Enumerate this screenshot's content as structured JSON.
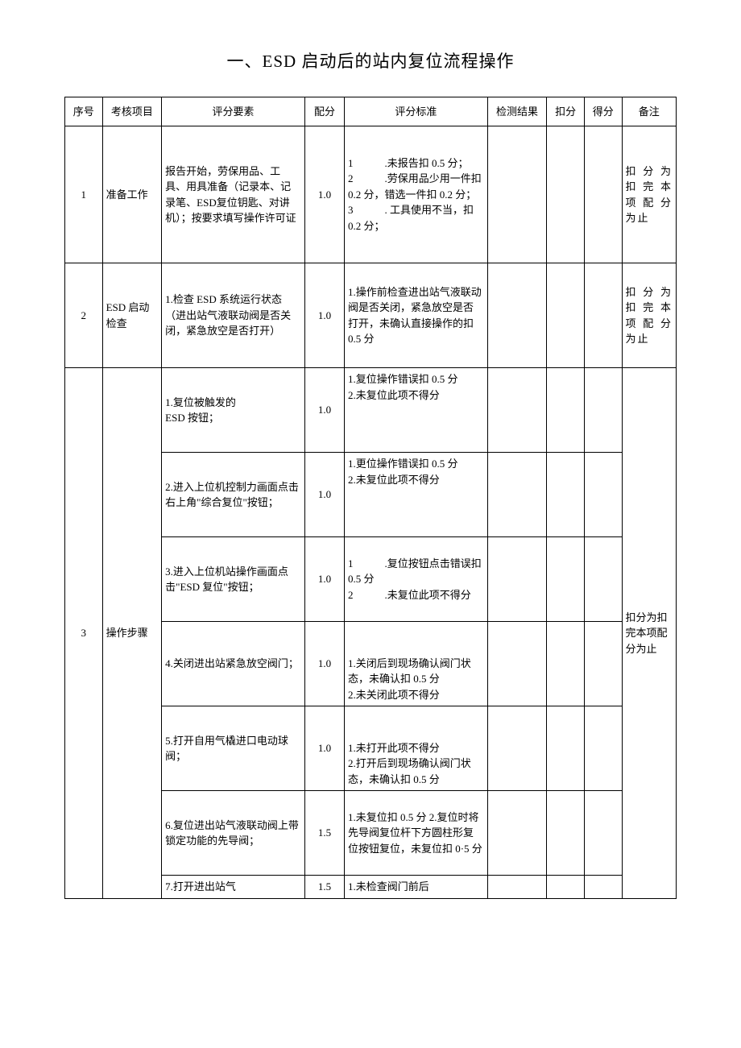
{
  "title": "一、ESD 启动后的站内复位流程操作",
  "headers": {
    "seq": "序号",
    "item": "考核项目",
    "element": "评分要素",
    "score": "配分",
    "standard": "评分标准",
    "result": "检测结果",
    "deduct": "扣分",
    "gain": "得分",
    "remark": "备注"
  },
  "rows": {
    "r1": {
      "seq": "1",
      "item": "准备工作",
      "element": "报告开始，劳保用品、工具、用具准备（记录本、记录笔、ESD复位钥匙、对讲机）；按要求填写操作许可证",
      "score": "1.0",
      "standard": "1　　　.未报告扣 0.5 分；\n2　　　.劳保用品少用一件扣 0.2 分，错选一件扣 0.2 分；\n3　　　. 工具使用不当，扣\n0.2 分；",
      "remark": "扣分为扣完本项配分为止"
    },
    "r2": {
      "seq": "2",
      "item": "ESD 启动检查",
      "element": "1.检查 ESD 系统运行状态（进出站气液联动阀是否关闭，紧急放空是否打开）",
      "score": "1.0",
      "standard": "1.操作前检查进出站气液联动阀是否关闭，紧急放空是否打开，未确认直接操作的扣 0.5 分",
      "remark": "扣分为扣完本项配分为止"
    },
    "r3": {
      "seq": "3",
      "item": "操作步骤",
      "remark": "扣分为扣完本项配分为止",
      "steps": {
        "s1": {
          "element": "1.复位被触发的\nESD 按钮；",
          "score": "1.0",
          "standard": "1.复位操作错误扣 0.5 分\n2.未复位此项不得分"
        },
        "s2": {
          "element": "2.进入上位机控制力画面点击右上角\"综合复位\"按钮；",
          "score": "1.0",
          "standard": "1.更位操作错误扣 0.5 分\n2.未复位此项不得分"
        },
        "s3": {
          "element": "3.进入上位机站操作画面点击\"ESD 复位\"按钮；",
          "score": "1.0",
          "standard": "1　　　.复位按钮点击错误扣 0.5 分\n2　　　.未复位此项不得分"
        },
        "s4": {
          "element": "4.关闭进出站紧急放空阀门；",
          "score": "1.0",
          "standard": "1.关闭后到现场确认阀门状态，未确认扣 0.5 分\n2.未关闭此项不得分"
        },
        "s5": {
          "element": "5.打开自用气橇进口电动球阀；",
          "score": "1.0",
          "standard": "1.未打开此项不得分\n2.打开后到现场确认阀门状态，未确认扣 0.5 分"
        },
        "s6": {
          "element": "6.复位进出站气液联动阀上带锁定功能的先导阀；",
          "score": "1.5",
          "standard": "1.未复位扣 0.5 分 2.复位时将先导阀复位杆下方圆柱形复位按钮复位，未复位扣 0·5 分"
        },
        "s7": {
          "element": "7.打开进出站气",
          "score": "1.5",
          "standard": "1.未检查阀门前后"
        }
      }
    }
  }
}
